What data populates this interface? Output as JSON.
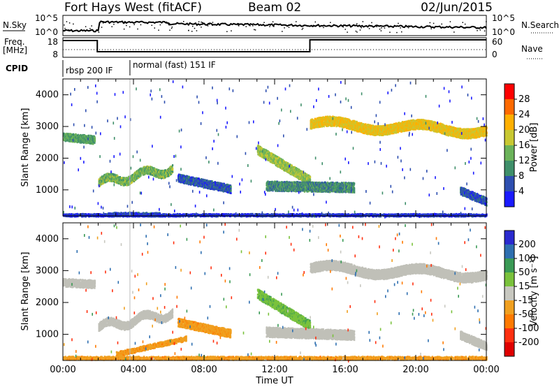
{
  "header": {
    "title": "Fort Hays West (fitACF)",
    "beam": "Beam 02",
    "date": "02/Jun/2015"
  },
  "summary_panels": {
    "nsky_label": "N.Sky",
    "nsearch_label": "N.Search",
    "freq_label_top": "Freq.",
    "freq_label_bottom": "[MHz]",
    "nave_label": "Nave",
    "cpid_label": "CPID",
    "noise_ticks": [
      "10^5",
      "10^0"
    ],
    "noise_right_ticks": [
      "10^5",
      "10^0"
    ],
    "freq_ticks": [
      "18",
      "8"
    ],
    "nave_ticks": [
      "60",
      "0"
    ],
    "cpid_segments": [
      {
        "label": "rbsp 200 IF",
        "start_hour": 0,
        "end_hour": 3.8
      },
      {
        "label": "normal (fast) 151 IF",
        "start_hour": 3.8,
        "end_hour": 24
      }
    ]
  },
  "colors": {
    "power_scale": [
      "#1a1aff",
      "#2e4fb0",
      "#3f8f6a",
      "#6bb35a",
      "#c8c832",
      "#ffb000",
      "#ff6a00",
      "#ff0000"
    ],
    "velocity_scale": [
      "#2a2acf",
      "#2e6fb0",
      "#3a9a55",
      "#7ac23c",
      "#c8c8c0",
      "#f0a020",
      "#ff7a00",
      "#ff3010",
      "#e00000"
    ],
    "ground_scatter": "#c0c0b8"
  },
  "chart_data": [
    {
      "type": "heatmap",
      "title": "",
      "parameter": "Power",
      "xlabel": "Time UT",
      "ylabel": "Slant Range [km]",
      "colorbar_label": "Power [dB]",
      "colorbar_ticks": [
        "4",
        "8",
        "12",
        "16",
        "20",
        "24",
        "28"
      ],
      "colorbar_range": [
        0,
        32
      ],
      "x_ticks": [
        "00:00",
        "04:00",
        "08:00",
        "12:00",
        "16:00",
        "20:00",
        "00:00"
      ],
      "y_ticks": [
        "1000",
        "2000",
        "3000",
        "4000"
      ],
      "xlim_hours": [
        0,
        24
      ],
      "ylim_km": [
        180,
        4500
      ],
      "echo_bands": [
        {
          "start_hour": 0.0,
          "end_hour": 1.8,
          "range_start_km": 2700,
          "range_end_km": 2600,
          "thickness_km": 250,
          "power_db": 12
        },
        {
          "start_hour": 2.0,
          "end_hour": 6.2,
          "range_start_km": 1250,
          "range_end_km": 1700,
          "thickness_km": 250,
          "power_db": 14,
          "min_range_km": 1100
        },
        {
          "start_hour": 2.5,
          "end_hour": 5.5,
          "range_start_km": 250,
          "range_end_km": 250,
          "thickness_km": 120,
          "power_db": 6
        },
        {
          "start_hour": 6.5,
          "end_hour": 9.5,
          "range_start_km": 1400,
          "range_end_km": 1050,
          "thickness_km": 250,
          "power_db": 6
        },
        {
          "start_hour": 11.0,
          "end_hour": 14.0,
          "range_start_km": 2300,
          "range_end_km": 1300,
          "thickness_km": 300,
          "power_db": 16
        },
        {
          "start_hour": 11.5,
          "end_hour": 16.5,
          "range_start_km": 1150,
          "range_end_km": 1100,
          "thickness_km": 300,
          "power_db": 10
        },
        {
          "start_hour": 14.0,
          "end_hour": 24.0,
          "range_start_km": 3100,
          "range_end_km": 2900,
          "thickness_km": 300,
          "power_db": 20,
          "min_range_km": 2200
        },
        {
          "start_hour": 22.5,
          "end_hour": 24.0,
          "range_start_km": 1000,
          "range_end_km": 650,
          "thickness_km": 250,
          "power_db": 6
        },
        {
          "start_hour": 0.0,
          "end_hour": 24.0,
          "range_start_km": 230,
          "range_end_km": 230,
          "thickness_km": 80,
          "power_db": 4
        }
      ]
    },
    {
      "type": "heatmap",
      "title": "",
      "parameter": "Velocity",
      "xlabel": "Time UT",
      "ylabel": "Slant Range [km]",
      "colorbar_label": "Velocity [m s⁻¹]",
      "colorbar_ticks": [
        "200",
        "100",
        "50",
        "15",
        "-15",
        "-50",
        "-100",
        "-200"
      ],
      "colorbar_range": [
        -250,
        250
      ],
      "x_ticks": [
        "00:00",
        "04:00",
        "08:00",
        "12:00",
        "16:00",
        "20:00",
        "00:00"
      ],
      "y_ticks": [
        "1000",
        "2000",
        "3000",
        "4000"
      ],
      "xlim_hours": [
        0,
        24
      ],
      "ylim_km": [
        180,
        4500
      ],
      "echo_bands": [
        {
          "start_hour": 0.0,
          "end_hour": 1.8,
          "range_start_km": 2650,
          "range_end_km": 2600,
          "thickness_km": 250,
          "velocity": 0
        },
        {
          "start_hour": 2.0,
          "end_hour": 6.2,
          "range_start_km": 1250,
          "range_end_km": 1700,
          "thickness_km": 250,
          "velocity": 0,
          "min_range_km": 1100
        },
        {
          "start_hour": 3.0,
          "end_hour": 7.0,
          "range_start_km": 400,
          "range_end_km": 900,
          "thickness_km": 150,
          "velocity": -40
        },
        {
          "start_hour": 6.5,
          "end_hour": 9.5,
          "range_start_km": 1400,
          "range_end_km": 1050,
          "thickness_km": 250,
          "velocity": -40
        },
        {
          "start_hour": 11.0,
          "end_hour": 14.0,
          "range_start_km": 2300,
          "range_end_km": 1300,
          "thickness_km": 300,
          "velocity": 40
        },
        {
          "start_hour": 11.5,
          "end_hour": 16.5,
          "range_start_km": 1100,
          "range_end_km": 1000,
          "thickness_km": 300,
          "velocity": 0
        },
        {
          "start_hour": 14.0,
          "end_hour": 24.0,
          "range_start_km": 3100,
          "range_end_km": 2900,
          "thickness_km": 300,
          "velocity": 0,
          "min_range_km": 2200
        },
        {
          "start_hour": 22.5,
          "end_hour": 24.0,
          "range_start_km": 1000,
          "range_end_km": 650,
          "thickness_km": 250,
          "velocity": 0
        },
        {
          "start_hour": 0.0,
          "end_hour": 24.0,
          "range_start_km": 280,
          "range_end_km": 280,
          "thickness_km": 100,
          "velocity": -40
        }
      ]
    }
  ]
}
